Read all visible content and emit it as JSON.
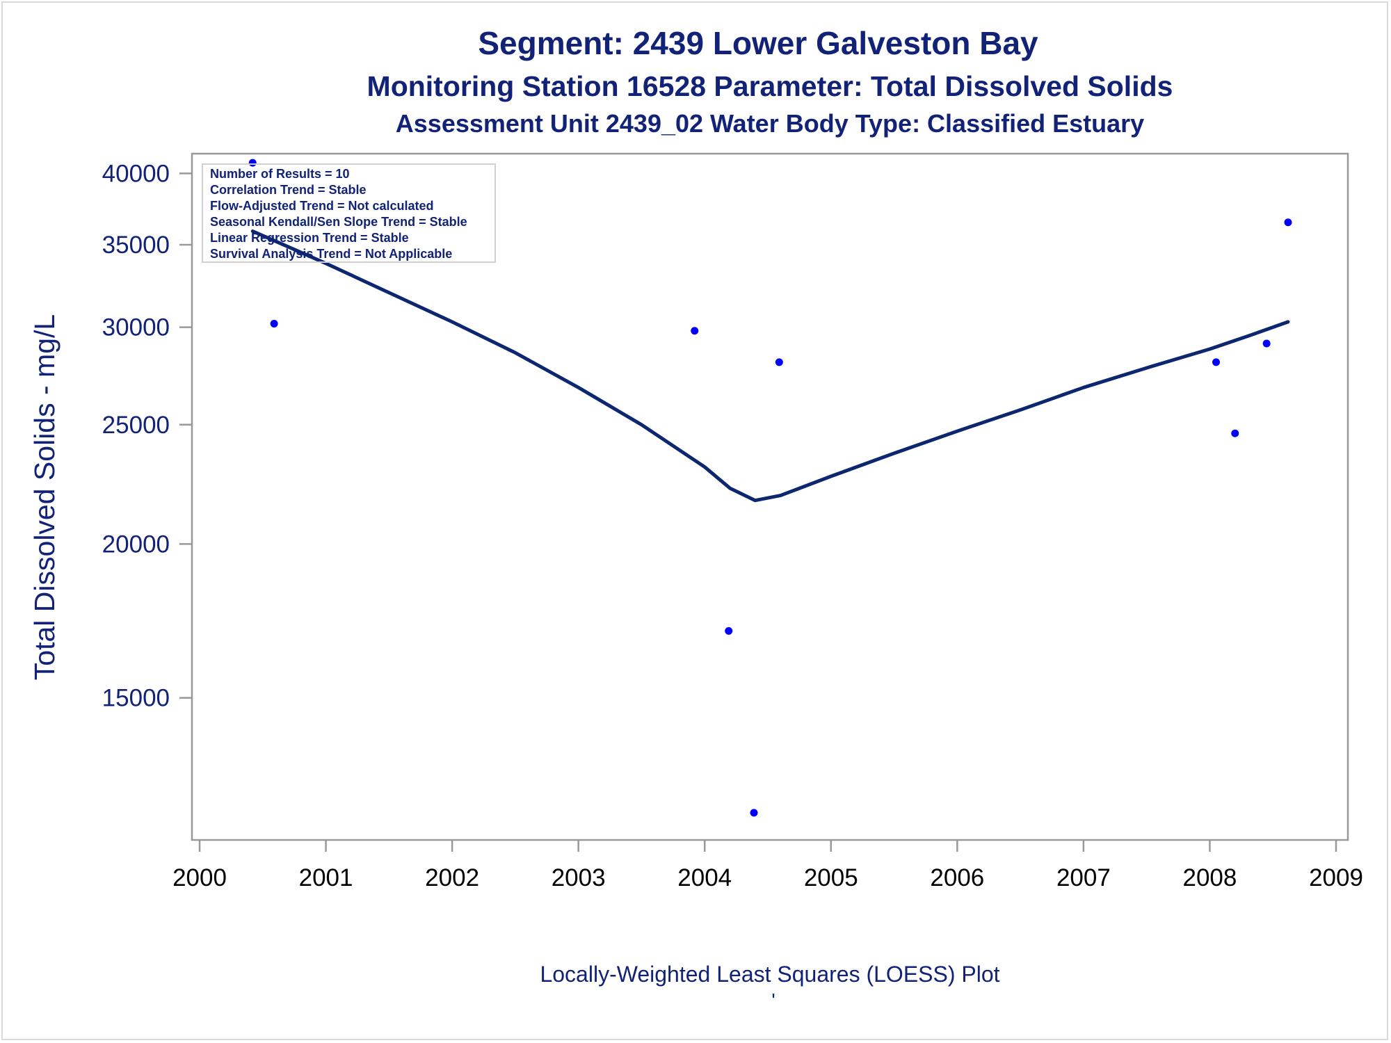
{
  "titles": {
    "line1": "Segment: 2439  Lower Galveston Bay",
    "line2": "Monitoring Station 16528 Parameter: Total Dissolved Solids",
    "line3": "Assessment Unit 2439_02   Water Body Type: Classified Estuary"
  },
  "info_box": [
    "Number of Results = 10",
    "Correlation Trend = Stable",
    "Flow-Adjusted Trend = Not calculated",
    "Seasonal Kendall/Sen Slope Trend = Stable",
    "Linear Regression Trend = Stable",
    "Survival Analysis Trend = Not Applicable"
  ],
  "footnote": "Locally-Weighted Least Squares (LOESS) Plot",
  "footnote_mark": "'",
  "colors": {
    "text": "#112277",
    "points": "#0000ff",
    "line": "#0d2670",
    "axis": "#999999"
  },
  "chart_data": {
    "type": "scatter",
    "title": "Segment: 2439  Lower Galveston Bay",
    "xlabel": "",
    "ylabel": "Total Dissolved Solids - mg/L",
    "xlim": [
      2000,
      2009
    ],
    "ylim": [
      11500,
      41500
    ],
    "y_scale": "log",
    "x_ticks": [
      "2000",
      "2001",
      "2002",
      "2003",
      "2004",
      "2005",
      "2006",
      "2007",
      "2008",
      "2009"
    ],
    "y_ticks": [
      "15000",
      "20000",
      "25000",
      "30000",
      "35000",
      "40000"
    ],
    "grid": false,
    "series": [
      {
        "kind": "points",
        "x": [
          2000.42,
          2000.59,
          2003.92,
          2004.19,
          2004.39,
          2004.59,
          2008.05,
          2008.2,
          2008.45,
          2008.62
        ],
        "y": [
          40800,
          30200,
          29800,
          17000,
          12100,
          28100,
          28100,
          24600,
          29100,
          36500
        ]
      },
      {
        "kind": "loess-line",
        "x": [
          2000.42,
          2001.0,
          2001.5,
          2002.0,
          2002.5,
          2003.0,
          2003.5,
          2004.0,
          2004.2,
          2004.4,
          2004.6,
          2005.0,
          2005.5,
          2006.0,
          2006.5,
          2007.0,
          2007.5,
          2008.0,
          2008.3,
          2008.62
        ],
        "y": [
          35900,
          33800,
          32000,
          30300,
          28600,
          26800,
          25000,
          23100,
          22200,
          21700,
          21900,
          22700,
          23700,
          24700,
          25700,
          26800,
          27800,
          28800,
          29500,
          30300
        ]
      }
    ]
  }
}
